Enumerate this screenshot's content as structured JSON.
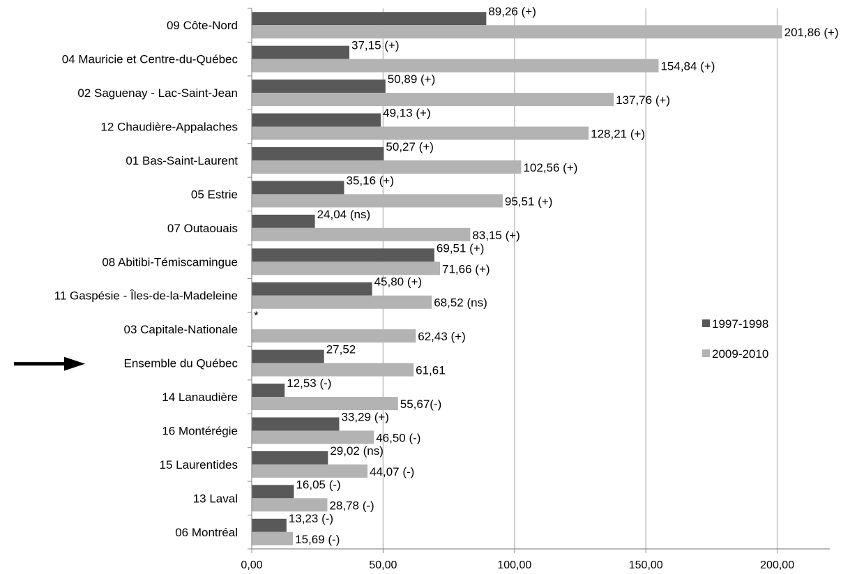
{
  "chart_data": {
    "type": "bar",
    "orientation": "horizontal",
    "categories": [
      "09 Côte-Nord",
      "04 Mauricie et Centre-du-Québec",
      "02 Saguenay - Lac-Saint-Jean",
      "12 Chaudière-Appalaches",
      "01 Bas-Saint-Laurent",
      "05 Estrie",
      "07 Outaouais",
      "08 Abitibi-Témiscamingue",
      "11 Gaspésie - Îles-de-la-Madeleine",
      "03 Capitale-Nationale",
      "Ensemble du Québec",
      "14 Lanaudière",
      "16 Montérégie",
      "15 Laurentides",
      "13 Laval",
      "06 Montréal"
    ],
    "highlighted_category": "Ensemble du Québec",
    "series": [
      {
        "name": "1997-1998",
        "color": "#595959",
        "values": [
          89.26,
          37.15,
          50.89,
          49.13,
          50.27,
          35.16,
          24.04,
          69.51,
          45.8,
          null,
          27.52,
          12.53,
          33.29,
          29.02,
          16.05,
          13.23
        ],
        "labels": [
          "89,26 (+)",
          "37,15 (+)",
          "50,89 (+)",
          "49,13 (+)",
          "50,27 (+)",
          "35,16 (+)",
          "24,04 (ns)",
          "69,51 (+)",
          "45,80 (+)",
          "*",
          "27,52",
          "12,53 (-)",
          "33,29 (+)",
          "29,02 (ns)",
          "16,05 (-)",
          "13,23 (-)"
        ]
      },
      {
        "name": "2009-2010",
        "color": "#b3b3b3",
        "values": [
          201.86,
          154.84,
          137.76,
          128.21,
          102.56,
          95.51,
          83.15,
          71.66,
          68.52,
          62.43,
          61.61,
          55.67,
          46.5,
          44.07,
          28.78,
          15.69
        ],
        "labels": [
          "201,86 (+)",
          "154,84 (+)",
          "137,76 (+)",
          "128,21 (+)",
          "102,56 (+)",
          "95,51 (+)",
          "83,15 (+)",
          "71,66 (+)",
          "68,52 (ns)",
          "62,43 (+)",
          "61,61",
          "55,67(-)",
          "46,50 (-)",
          "44,07 (-)",
          "28,78 (-)",
          "15,69 (-)"
        ]
      }
    ],
    "xlim": [
      0,
      220
    ],
    "ticks": [
      0,
      50,
      100,
      150,
      200
    ],
    "tick_labels": [
      "0,00",
      "50,00",
      "100,00",
      "150,00",
      "200,00"
    ],
    "grid": true,
    "legend_position": "right",
    "title": "",
    "xlabel": "",
    "ylabel": ""
  }
}
